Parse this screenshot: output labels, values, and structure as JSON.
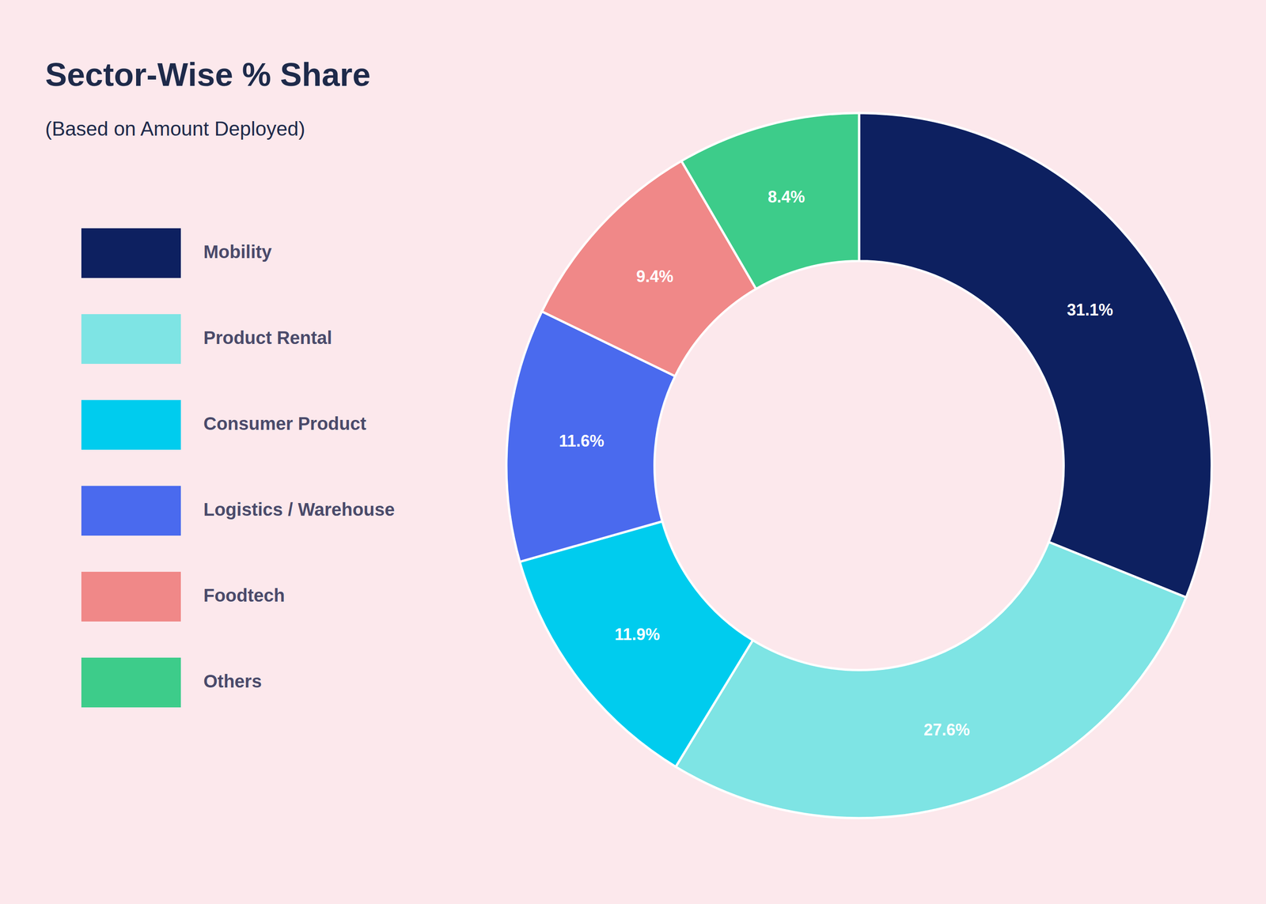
{
  "chart_data": {
    "type": "donut",
    "title": "Sector-Wise % Share",
    "subtitle": "(Based on Amount Deployed)",
    "categories": [
      "Mobility",
      "Product Rental",
      "Consumer Product",
      "Logistics / Warehouse",
      "Foodtech",
      "Others"
    ],
    "values": [
      31.1,
      27.6,
      11.9,
      11.6,
      9.4,
      8.4
    ],
    "value_labels": [
      "31.1%",
      "27.6%",
      "11.9%",
      "11.6%",
      "9.4%",
      "8.4%"
    ],
    "colors": [
      "#0d2060",
      "#7ee4e4",
      "#00ccee",
      "#4a6aee",
      "#f08888",
      "#3dcc8a"
    ],
    "data_labels": true,
    "legend": "left"
  }
}
